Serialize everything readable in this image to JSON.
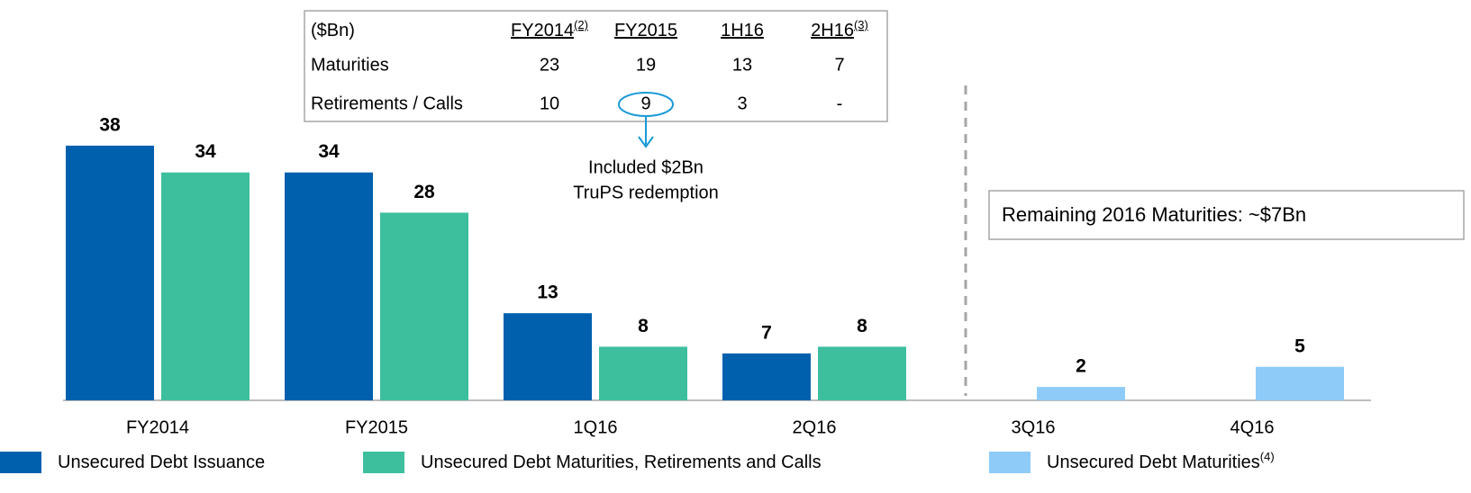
{
  "chart_data": {
    "type": "bar",
    "categories": [
      "FY2014",
      "FY2015",
      "1Q16",
      "2Q16",
      "3Q16",
      "4Q16"
    ],
    "series": [
      {
        "name": "Unsecured Debt Issuance",
        "color": "#0060ae",
        "values": [
          38,
          34,
          13,
          7,
          null,
          null
        ]
      },
      {
        "name": "Unsecured Debt Maturities, Retirements and Calls",
        "color": "#3dbf9e",
        "values": [
          34,
          28,
          8,
          8,
          null,
          null
        ]
      },
      {
        "name": "Unsecured Debt Maturities",
        "note": "(4)",
        "color": "#8ecbf8",
        "values": [
          null,
          null,
          null,
          null,
          2,
          5
        ]
      }
    ],
    "ylim": [
      0,
      40
    ],
    "table": {
      "headers": [
        {
          "label": "($Bn)"
        },
        {
          "label": "FY2014",
          "note": "(2)"
        },
        {
          "label": "FY2015"
        },
        {
          "label": "1H16"
        },
        {
          "label": "2H16",
          "note": "(3)"
        }
      ],
      "rows": [
        {
          "label": "Maturities",
          "cells": [
            "23",
            "19",
            "13",
            "7"
          ]
        },
        {
          "label": "Retirements / Calls",
          "cells": [
            "10",
            "9",
            "3",
            "-"
          ]
        }
      ]
    },
    "annotations": [
      "Included $2Bn",
      "TruPS redemption"
    ],
    "callout": "Remaining 2016 Maturities: ~$7Bn"
  }
}
